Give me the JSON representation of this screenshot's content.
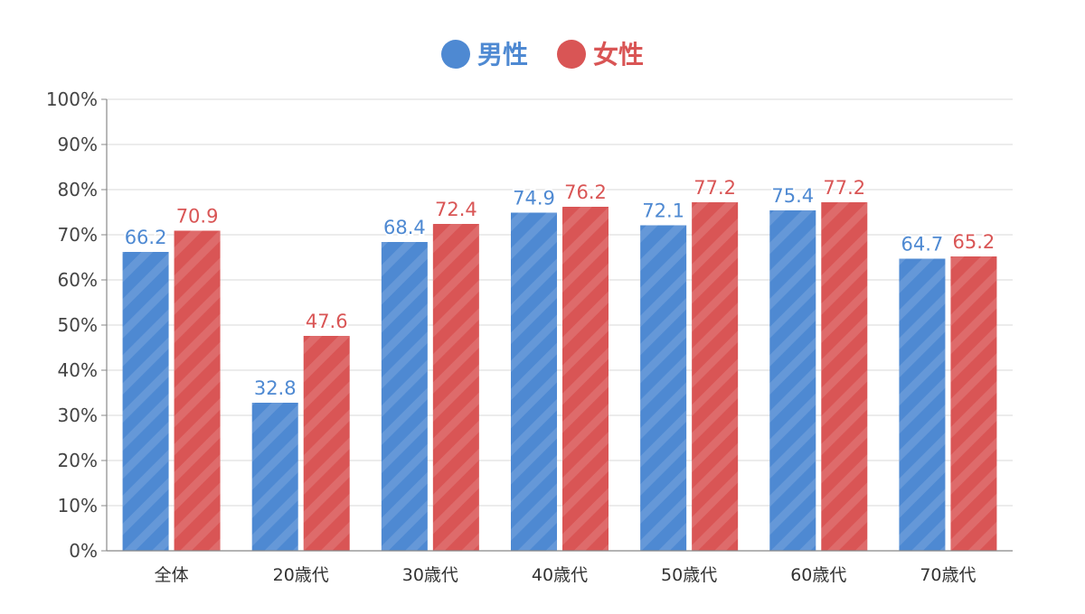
{
  "chart_data": {
    "type": "bar",
    "title": "",
    "xlabel": "",
    "ylabel": "",
    "categories": [
      "全体",
      "20歳代",
      "30歳代",
      "40歳代",
      "50歳代",
      "60歳代",
      "70歳代"
    ],
    "series": [
      {
        "name": "男性",
        "values": [
          66.2,
          32.8,
          68.4,
          74.9,
          72.1,
          75.4,
          64.7
        ],
        "color": "#4e89d2"
      },
      {
        "name": "女性",
        "values": [
          70.9,
          47.6,
          72.4,
          76.2,
          77.2,
          77.2,
          65.2
        ],
        "color": "#d95555"
      }
    ],
    "ylim": [
      0,
      100
    ],
    "yticks": [
      "0%",
      "10%",
      "20%",
      "30%",
      "40%",
      "50%",
      "60%",
      "70%",
      "80%",
      "90%",
      "100%"
    ],
    "grid": true,
    "legend_position": "top-center",
    "data_labels": true
  }
}
